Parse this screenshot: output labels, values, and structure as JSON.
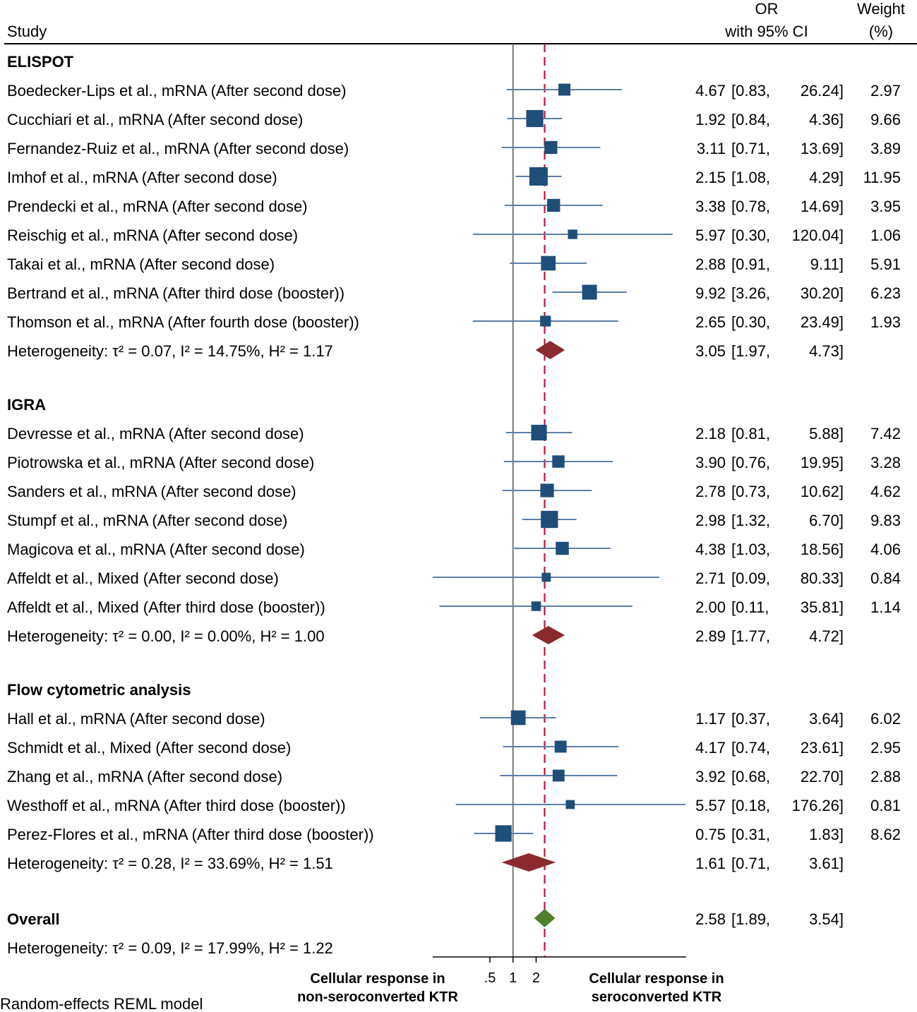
{
  "chart_data": {
    "type": "forest",
    "title": "",
    "header": {
      "study": "Study",
      "or_line1": "OR",
      "or_line2": "with 95% CI",
      "weight_line1": "Weight",
      "weight_line2": "(%)"
    },
    "x_scale": "log",
    "x_ticks": [
      {
        "value": 0.5,
        "label": ".5"
      },
      {
        "value": 1,
        "label": "1"
      },
      {
        "value": 2,
        "label": "2"
      }
    ],
    "xlim": [
      0.09,
      180
    ],
    "overall_line_value": 2.58,
    "colors": {
      "study_marker": "#1f4e79",
      "ci_line": "#5b7fa6",
      "subgroup_diamond": "#8b2a2e",
      "overall_diamond": "#4f7f2b",
      "reference_dash": "#c0143c",
      "axis": "#000000"
    },
    "groups": [
      {
        "name": "ELISPOT",
        "studies": [
          {
            "label": "Boedecker-Lips et al., mRNA (After second dose)",
            "or": 4.67,
            "lo": 0.83,
            "hi": 26.24,
            "or_text": "4.67",
            "lo_text": "[0.83,",
            "hi_text": "26.24]",
            "weight": 2.97,
            "weight_text": "2.97"
          },
          {
            "label": "Cucchiari et al., mRNA (After second dose)",
            "or": 1.92,
            "lo": 0.84,
            "hi": 4.36,
            "or_text": "1.92",
            "lo_text": "[0.84,",
            "hi_text": "4.36]",
            "weight": 9.66,
            "weight_text": "9.66"
          },
          {
            "label": "Fernandez-Ruiz et al., mRNA (After second dose)",
            "or": 3.11,
            "lo": 0.71,
            "hi": 13.69,
            "or_text": "3.11",
            "lo_text": "[0.71,",
            "hi_text": "13.69]",
            "weight": 3.89,
            "weight_text": "3.89"
          },
          {
            "label": "Imhof et al., mRNA (After second dose)",
            "or": 2.15,
            "lo": 1.08,
            "hi": 4.29,
            "or_text": "2.15",
            "lo_text": "[1.08,",
            "hi_text": "4.29]",
            "weight": 11.95,
            "weight_text": "11.95"
          },
          {
            "label": "Prendecki et al., mRNA (After second dose)",
            "or": 3.38,
            "lo": 0.78,
            "hi": 14.69,
            "or_text": "3.38",
            "lo_text": "[0.78,",
            "hi_text": "14.69]",
            "weight": 3.95,
            "weight_text": "3.95"
          },
          {
            "label": "Reischig et al., mRNA (After second dose)",
            "or": 5.97,
            "lo": 0.3,
            "hi": 120.04,
            "or_text": "5.97",
            "lo_text": "[0.30,",
            "hi_text": "120.04]",
            "weight": 1.06,
            "weight_text": "1.06"
          },
          {
            "label": "Takai et al., mRNA (After second dose)",
            "or": 2.88,
            "lo": 0.91,
            "hi": 9.11,
            "or_text": "2.88",
            "lo_text": "[0.91,",
            "hi_text": "9.11]",
            "weight": 5.91,
            "weight_text": "5.91"
          },
          {
            "label": "Bertrand et al., mRNA (After third dose (booster))",
            "or": 9.92,
            "lo": 3.26,
            "hi": 30.2,
            "or_text": "9.92",
            "lo_text": "[3.26,",
            "hi_text": "30.20]",
            "weight": 6.23,
            "weight_text": "6.23"
          },
          {
            "label": "Thomson et al., mRNA (After fourth dose (booster))",
            "or": 2.65,
            "lo": 0.3,
            "hi": 23.49,
            "or_text": "2.65",
            "lo_text": "[0.30,",
            "hi_text": "23.49]",
            "weight": 1.93,
            "weight_text": "1.93"
          }
        ],
        "summary": {
          "label": "Heterogeneity: τ² = 0.07, I² = 14.75%, H² = 1.17",
          "or": 3.05,
          "lo": 1.97,
          "hi": 4.73,
          "or_text": "3.05",
          "lo_text": "[1.97,",
          "hi_text": "4.73]"
        }
      },
      {
        "name": "IGRA",
        "studies": [
          {
            "label": "Devresse et al., mRNA (After second dose)",
            "or": 2.18,
            "lo": 0.81,
            "hi": 5.88,
            "or_text": "2.18",
            "lo_text": "[0.81,",
            "hi_text": "5.88]",
            "weight": 7.42,
            "weight_text": "7.42"
          },
          {
            "label": "Piotrowska et al., mRNA (After second dose)",
            "or": 3.9,
            "lo": 0.76,
            "hi": 19.95,
            "or_text": "3.90",
            "lo_text": "[0.76,",
            "hi_text": "19.95]",
            "weight": 3.28,
            "weight_text": "3.28"
          },
          {
            "label": "Sanders et al., mRNA (After second dose)",
            "or": 2.78,
            "lo": 0.73,
            "hi": 10.62,
            "or_text": "2.78",
            "lo_text": "[0.73,",
            "hi_text": "10.62]",
            "weight": 4.62,
            "weight_text": "4.62"
          },
          {
            "label": "Stumpf et al., mRNA (After second dose)",
            "or": 2.98,
            "lo": 1.32,
            "hi": 6.7,
            "or_text": "2.98",
            "lo_text": "[1.32,",
            "hi_text": "6.70]",
            "weight": 9.83,
            "weight_text": "9.83"
          },
          {
            "label": "Magicova et al., mRNA (After second dose)",
            "or": 4.38,
            "lo": 1.03,
            "hi": 18.56,
            "or_text": "4.38",
            "lo_text": "[1.03,",
            "hi_text": "18.56]",
            "weight": 4.06,
            "weight_text": "4.06"
          },
          {
            "label": "Affeldt et al., Mixed (After second dose)",
            "or": 2.71,
            "lo": 0.09,
            "hi": 80.33,
            "or_text": "2.71",
            "lo_text": "[0.09,",
            "hi_text": "80.33]",
            "weight": 0.84,
            "weight_text": "0.84"
          },
          {
            "label": "Affeldt et al., Mixed (After third dose (booster))",
            "or": 2.0,
            "lo": 0.11,
            "hi": 35.81,
            "or_text": "2.00",
            "lo_text": "[0.11,",
            "hi_text": "35.81]",
            "weight": 1.14,
            "weight_text": "1.14"
          }
        ],
        "summary": {
          "label": "Heterogeneity: τ² = 0.00, I² = 0.00%, H² = 1.00",
          "or": 2.89,
          "lo": 1.77,
          "hi": 4.72,
          "or_text": "2.89",
          "lo_text": "[1.77,",
          "hi_text": "4.72]"
        }
      },
      {
        "name": "Flow cytometric analysis",
        "studies": [
          {
            "label": "Hall et al., mRNA (After second dose)",
            "or": 1.17,
            "lo": 0.37,
            "hi": 3.64,
            "or_text": "1.17",
            "lo_text": "[0.37,",
            "hi_text": "3.64]",
            "weight": 6.02,
            "weight_text": "6.02"
          },
          {
            "label": "Schmidt et al., Mixed (After second dose)",
            "or": 4.17,
            "lo": 0.74,
            "hi": 23.61,
            "or_text": "4.17",
            "lo_text": "[0.74,",
            "hi_text": "23.61]",
            "weight": 2.95,
            "weight_text": "2.95"
          },
          {
            "label": "Zhang et al., mRNA (After second dose)",
            "or": 3.92,
            "lo": 0.68,
            "hi": 22.7,
            "or_text": "3.92",
            "lo_text": "[0.68,",
            "hi_text": "22.70]",
            "weight": 2.88,
            "weight_text": "2.88"
          },
          {
            "label": "Westhoff et al., mRNA (After third dose (booster))",
            "or": 5.57,
            "lo": 0.18,
            "hi": 176.26,
            "or_text": "5.57",
            "lo_text": "[0.18,",
            "hi_text": "176.26]",
            "weight": 0.81,
            "weight_text": "0.81"
          },
          {
            "label": "Perez-Flores et al., mRNA (After third dose (booster))",
            "or": 0.75,
            "lo": 0.31,
            "hi": 1.83,
            "or_text": "0.75",
            "lo_text": "[0.31,",
            "hi_text": "1.83]",
            "weight": 8.62,
            "weight_text": "8.62"
          }
        ],
        "summary": {
          "label": "Heterogeneity: τ² = 0.28, I² = 33.69%, H² = 1.51",
          "or": 1.61,
          "lo": 0.71,
          "hi": 3.61,
          "or_text": "1.61",
          "lo_text": "[0.71,",
          "hi_text": "3.61]"
        }
      }
    ],
    "overall": {
      "name": "Overall",
      "or": 2.58,
      "lo": 1.89,
      "hi": 3.54,
      "or_text": "2.58",
      "lo_text": "[1.89,",
      "hi_text": "3.54]",
      "heterogeneity": "Heterogeneity: τ² = 0.09, I² = 17.99%, H² = 1.22"
    },
    "axis_note_left": [
      "Cellular response in",
      "non-seroconverted KTR"
    ],
    "axis_note_right": [
      "Cellular response in",
      "seroconverted KTR"
    ],
    "footnote": "Random-effects REML model"
  }
}
